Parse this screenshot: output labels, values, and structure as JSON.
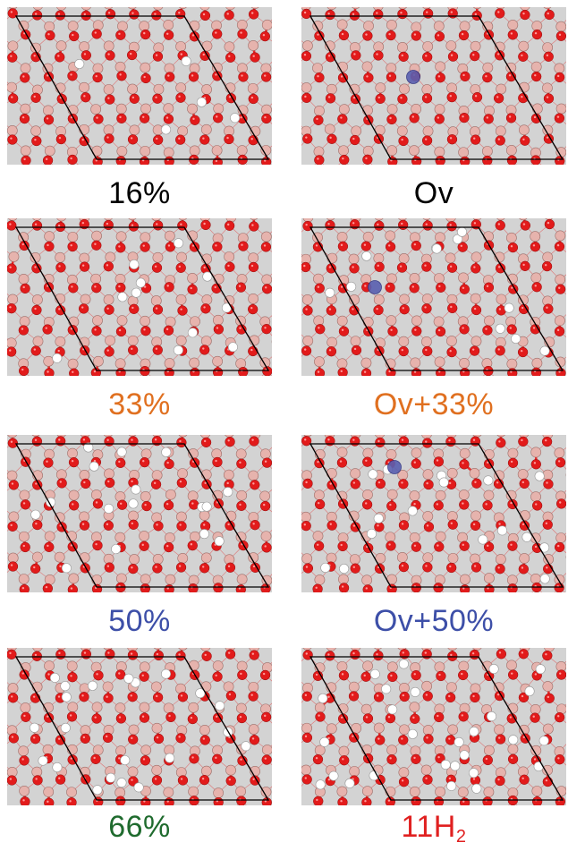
{
  "panels": [
    {
      "id": "p16",
      "label": "16%",
      "label_color": "#000000",
      "vacancy": false,
      "h_fraction": 0.16
    },
    {
      "id": "pov",
      "label": "Ov",
      "label_color": "#000000",
      "vacancy": true,
      "h_fraction": 0.0
    },
    {
      "id": "p33",
      "label": "33%",
      "label_color": "#e07020",
      "vacancy": false,
      "h_fraction": 0.33
    },
    {
      "id": "pov33",
      "label": "Ov+33%",
      "label_color": "#e07020",
      "vacancy": true,
      "h_fraction": 0.33
    },
    {
      "id": "p50",
      "label": "50%",
      "label_color": "#3d4fa8",
      "vacancy": false,
      "h_fraction": 0.5
    },
    {
      "id": "pov50",
      "label": "Ov+50%",
      "label_color": "#3d4fa8",
      "vacancy": true,
      "h_fraction": 0.5
    },
    {
      "id": "p66",
      "label": "66%",
      "label_color": "#1f6b2e",
      "vacancy": false,
      "h_fraction": 0.66
    },
    {
      "id": "p11h2",
      "label": "11H",
      "label_sub": "2",
      "label_color": "#e02020",
      "vacancy": false,
      "h_fraction": 0.85
    }
  ],
  "colors": {
    "background": "#d3d3d3",
    "oxygen": "#e21b1b",
    "metal": "#e6b3ad",
    "hydrogen": "#ffffff",
    "vacancy": "#5a5fb0",
    "bond": "#e82a2a",
    "cell": "#000000"
  }
}
